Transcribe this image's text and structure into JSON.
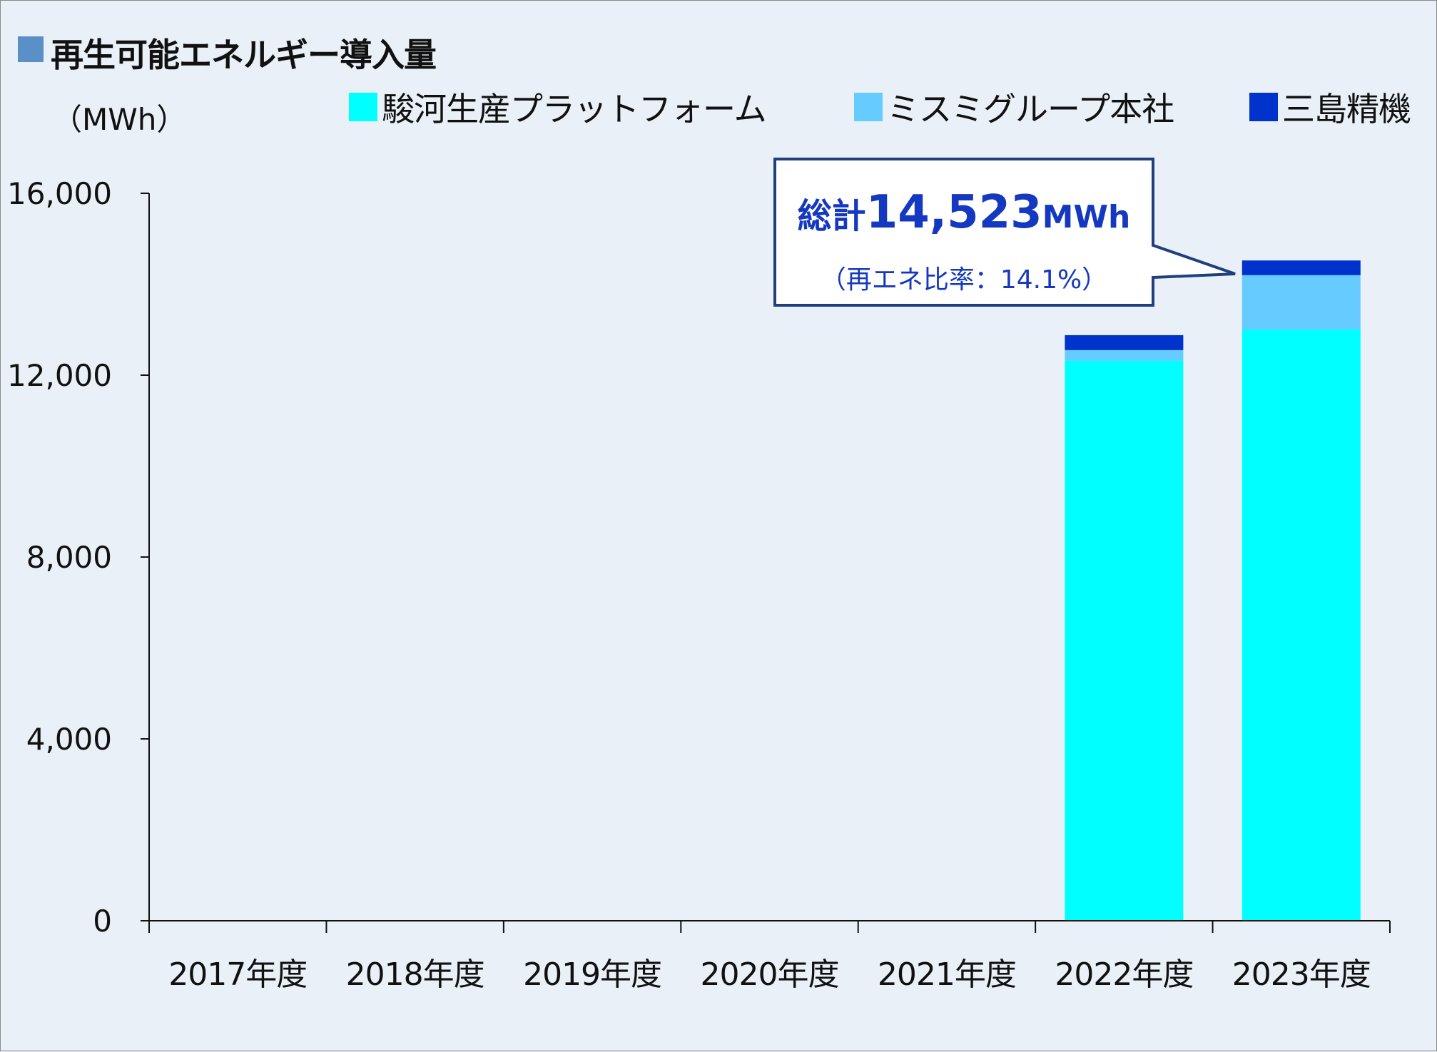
{
  "title": "再生可能エネルギー導入量",
  "unit": "（MWh）",
  "colors": {
    "background": "#e9f0f7",
    "title_square": "#5b8fc7",
    "callout_text": "#1438c0",
    "callout_border": "#1f3f7e"
  },
  "callout": {
    "prefix": "総計",
    "value": "14,523",
    "unit": "MWh",
    "subtext": "（再エネ比率：14.1%）"
  },
  "chart_data": {
    "type": "bar",
    "stacked": true,
    "categories": [
      "2017年度",
      "2018年度",
      "2019年度",
      "2020年度",
      "2021年度",
      "2022年度",
      "2023年度"
    ],
    "series": [
      {
        "name": "駿河生産プラットフォーム",
        "color": "#00ffff",
        "values": [
          0,
          0,
          0,
          0,
          0,
          12320,
          13010
        ]
      },
      {
        "name": "ミスミグループ本社",
        "color": "#66ccff",
        "values": [
          0,
          0,
          0,
          0,
          0,
          230,
          1190
        ]
      },
      {
        "name": "三島精機",
        "color": "#0033cc",
        "values": [
          0,
          0,
          0,
          0,
          0,
          330,
          323
        ]
      }
    ],
    "ylim": [
      0,
      16000
    ],
    "yticks": [
      0,
      4000,
      8000,
      12000,
      16000
    ],
    "ytick_labels": [
      "0",
      "4,000",
      "8,000",
      "12,000",
      "16,000"
    ],
    "legend_position": "top",
    "grid": false
  }
}
